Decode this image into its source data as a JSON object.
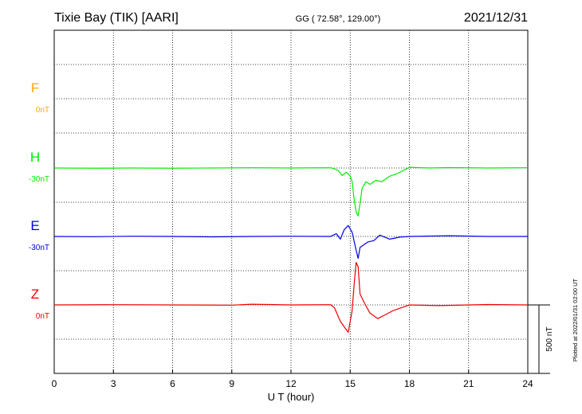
{
  "header": {
    "station": "Tixie Bay (TIK)  [AARI]",
    "coords": "GG ( 72.58°, 129.00°)",
    "date": "2021/12/31"
  },
  "footer": {
    "plotted_at": "Plotted at 2022/01/31 02:00 UT",
    "scale_label": "500 nT"
  },
  "chart_data": {
    "type": "line",
    "xlabel": "U T (hour)",
    "xlim": [
      0,
      24
    ],
    "x_ticks": [
      0,
      3,
      6,
      9,
      12,
      15,
      18,
      21,
      24
    ],
    "y_unit": "nT",
    "scale_bar_nT": 500,
    "grid": true,
    "series": [
      {
        "name": "F",
        "baseline_label": "0nT",
        "color": "#ffaa00",
        "points": []
      },
      {
        "name": "H",
        "baseline_label": "-30nT",
        "color": "#00ee00",
        "points": [
          [
            0,
            0
          ],
          [
            2,
            -2
          ],
          [
            4,
            0
          ],
          [
            6,
            -2
          ],
          [
            8,
            0
          ],
          [
            10,
            2
          ],
          [
            12,
            0
          ],
          [
            14,
            2
          ],
          [
            14.2,
            -5
          ],
          [
            14.4,
            -20
          ],
          [
            14.6,
            -55
          ],
          [
            14.8,
            -30
          ],
          [
            15.0,
            -60
          ],
          [
            15.1,
            -100
          ],
          [
            15.2,
            -230
          ],
          [
            15.3,
            -320
          ],
          [
            15.4,
            -350
          ],
          [
            15.5,
            -260
          ],
          [
            15.6,
            -150
          ],
          [
            15.8,
            -100
          ],
          [
            16.0,
            -120
          ],
          [
            16.3,
            -90
          ],
          [
            16.6,
            -100
          ],
          [
            17.0,
            -60
          ],
          [
            17.4,
            -40
          ],
          [
            17.8,
            -10
          ],
          [
            18,
            5
          ],
          [
            19,
            0
          ],
          [
            20,
            3
          ],
          [
            22,
            0
          ],
          [
            24,
            2
          ]
        ]
      },
      {
        "name": "E",
        "baseline_label": "-30nT",
        "color": "#0000ee",
        "points": [
          [
            0,
            0
          ],
          [
            2,
            -2
          ],
          [
            4,
            2
          ],
          [
            6,
            0
          ],
          [
            8,
            -3
          ],
          [
            10,
            0
          ],
          [
            12,
            2
          ],
          [
            14,
            0
          ],
          [
            14.3,
            20
          ],
          [
            14.5,
            -20
          ],
          [
            14.7,
            50
          ],
          [
            14.9,
            80
          ],
          [
            15.1,
            30
          ],
          [
            15.3,
            -100
          ],
          [
            15.4,
            -160
          ],
          [
            15.5,
            -80
          ],
          [
            15.7,
            -60
          ],
          [
            15.9,
            -40
          ],
          [
            16.2,
            -30
          ],
          [
            16.5,
            10
          ],
          [
            17,
            -20
          ],
          [
            17.5,
            -5
          ],
          [
            18,
            0
          ],
          [
            20,
            5
          ],
          [
            22,
            0
          ],
          [
            24,
            0
          ]
        ]
      },
      {
        "name": "Z",
        "baseline_label": "0nT",
        "color": "#ee0000",
        "points": [
          [
            0,
            0
          ],
          [
            3,
            2
          ],
          [
            6,
            0
          ],
          [
            9,
            -2
          ],
          [
            10,
            5
          ],
          [
            12,
            0
          ],
          [
            14,
            2
          ],
          [
            14.2,
            -20
          ],
          [
            14.5,
            -120
          ],
          [
            14.8,
            -180
          ],
          [
            14.9,
            -200
          ],
          [
            15.0,
            -120
          ],
          [
            15.1,
            -40
          ],
          [
            15.2,
            150
          ],
          [
            15.3,
            310
          ],
          [
            15.4,
            280
          ],
          [
            15.5,
            80
          ],
          [
            15.7,
            20
          ],
          [
            16.0,
            -60
          ],
          [
            16.4,
            -100
          ],
          [
            16.8,
            -70
          ],
          [
            17.2,
            -40
          ],
          [
            17.8,
            -10
          ],
          [
            18,
            0
          ],
          [
            19.5,
            -5
          ],
          [
            21,
            0
          ],
          [
            22,
            3
          ],
          [
            24,
            0
          ]
        ]
      }
    ]
  }
}
